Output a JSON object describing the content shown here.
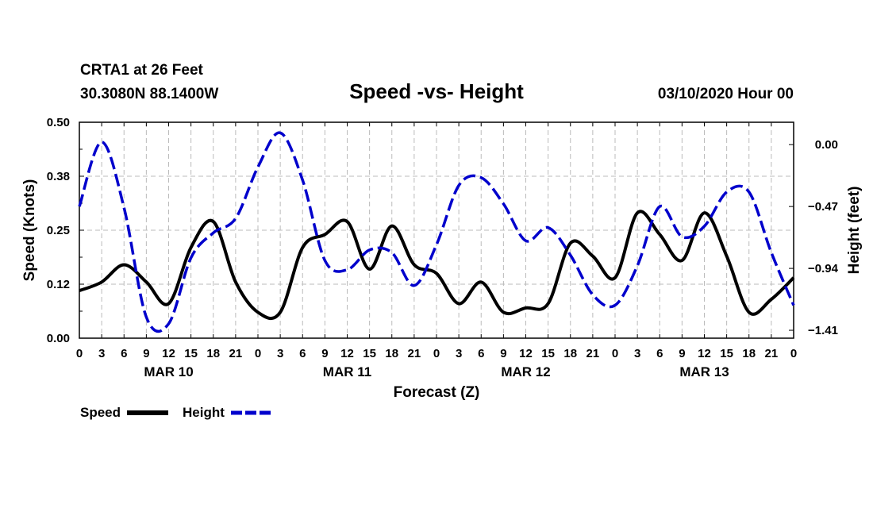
{
  "header": {
    "station": "CRTA1 at 26 Feet",
    "coords": "30.3080N 88.1400W",
    "date": "03/10/2020 Hour 00"
  },
  "chart_data": {
    "type": "line",
    "title": "Speed -vs- Height",
    "xlabel": "Forecast (Z)",
    "ylabel_left": "Speed (Knots)",
    "ylabel_right": "Height (feet)",
    "x_range_hours": [
      0,
      96
    ],
    "ylim_left": [
      0,
      0.5
    ],
    "ylim_right": [
      -1.47,
      0.17
    ],
    "yticks_left": [
      "0.00",
      "0.12",
      "0.25",
      "0.38",
      "0.50"
    ],
    "yticks_left_values": [
      0,
      0.125,
      0.25,
      0.375,
      0.5
    ],
    "yticks_right": [
      "0.00",
      "−0.47",
      "−0.94",
      "−1.41"
    ],
    "yticks_right_values": [
      0,
      -0.47,
      -0.94,
      -1.41
    ],
    "x_ticks": [
      {
        "hour": 0,
        "label": "0"
      },
      {
        "hour": 3,
        "label": "3"
      },
      {
        "hour": 6,
        "label": "6"
      },
      {
        "hour": 9,
        "label": "9"
      },
      {
        "hour": 12,
        "label": "12"
      },
      {
        "hour": 15,
        "label": "15"
      },
      {
        "hour": 18,
        "label": "18"
      },
      {
        "hour": 21,
        "label": "21"
      },
      {
        "hour": 24,
        "label": "0"
      },
      {
        "hour": 27,
        "label": "3"
      },
      {
        "hour": 30,
        "label": "6"
      },
      {
        "hour": 33,
        "label": "9"
      },
      {
        "hour": 36,
        "label": "12"
      },
      {
        "hour": 39,
        "label": "15"
      },
      {
        "hour": 42,
        "label": "18"
      },
      {
        "hour": 45,
        "label": "21"
      },
      {
        "hour": 48,
        "label": "0"
      },
      {
        "hour": 51,
        "label": "3"
      },
      {
        "hour": 54,
        "label": "6"
      },
      {
        "hour": 57,
        "label": "9"
      },
      {
        "hour": 60,
        "label": "12"
      },
      {
        "hour": 63,
        "label": "15"
      },
      {
        "hour": 66,
        "label": "18"
      },
      {
        "hour": 69,
        "label": "21"
      },
      {
        "hour": 72,
        "label": "0"
      },
      {
        "hour": 75,
        "label": "3"
      },
      {
        "hour": 78,
        "label": "6"
      },
      {
        "hour": 81,
        "label": "9"
      },
      {
        "hour": 84,
        "label": "12"
      },
      {
        "hour": 87,
        "label": "15"
      },
      {
        "hour": 90,
        "label": "18"
      },
      {
        "hour": 93,
        "label": "21"
      },
      {
        "hour": 96,
        "label": "0"
      }
    ],
    "date_labels": [
      {
        "hour": 12,
        "label": "MAR 10"
      },
      {
        "hour": 36,
        "label": "MAR 11"
      },
      {
        "hour": 60,
        "label": "MAR 12"
      },
      {
        "hour": 84,
        "label": "MAR 13"
      }
    ],
    "series": [
      {
        "name": "Speed",
        "axis": "left",
        "color": "#000000",
        "style": "solid",
        "x": [
          0,
          3,
          6,
          9,
          12,
          15,
          18,
          21,
          24,
          27,
          30,
          33,
          36,
          39,
          42,
          45,
          48,
          51,
          54,
          57,
          60,
          63,
          66,
          69,
          72,
          75,
          78,
          81,
          84,
          87,
          90,
          93,
          96
        ],
        "values": [
          0.11,
          0.13,
          0.17,
          0.13,
          0.08,
          0.21,
          0.27,
          0.13,
          0.06,
          0.06,
          0.21,
          0.24,
          0.27,
          0.16,
          0.26,
          0.17,
          0.15,
          0.08,
          0.13,
          0.06,
          0.07,
          0.08,
          0.22,
          0.19,
          0.14,
          0.29,
          0.24,
          0.18,
          0.29,
          0.19,
          0.06,
          0.09,
          0.14
        ]
      },
      {
        "name": "Height",
        "axis": "right",
        "color": "#0000cc",
        "style": "dashed",
        "x": [
          0,
          3,
          6,
          9,
          12,
          15,
          18,
          21,
          24,
          27,
          30,
          33,
          36,
          39,
          42,
          45,
          48,
          51,
          54,
          57,
          60,
          63,
          66,
          69,
          72,
          75,
          78,
          81,
          84,
          87,
          90,
          93,
          96
        ],
        "values": [
          -0.47,
          0.02,
          -0.48,
          -1.31,
          -1.36,
          -0.86,
          -0.67,
          -0.56,
          -0.17,
          0.09,
          -0.27,
          -0.88,
          -0.95,
          -0.8,
          -0.82,
          -1.07,
          -0.76,
          -0.31,
          -0.25,
          -0.45,
          -0.73,
          -0.63,
          -0.84,
          -1.14,
          -1.22,
          -0.92,
          -0.47,
          -0.7,
          -0.62,
          -0.36,
          -0.36,
          -0.82,
          -1.22
        ]
      }
    ],
    "legend": [
      {
        "name": "Speed",
        "color": "#000000",
        "style": "solid"
      },
      {
        "name": "Height",
        "color": "#0000cc",
        "style": "dashed"
      }
    ]
  }
}
